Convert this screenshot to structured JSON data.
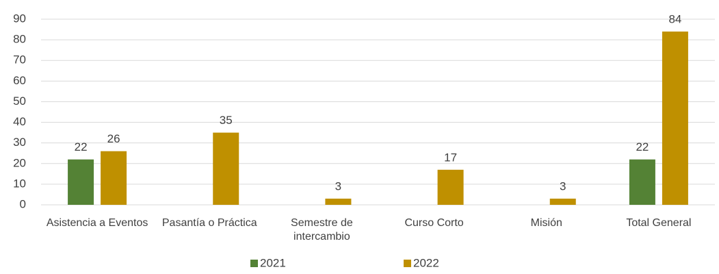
{
  "chart_data": {
    "type": "bar",
    "categories": [
      "Asistencia a Eventos",
      "Pasantía o Práctica",
      "Semestre de intercambio",
      "Curso Corto",
      "Misión",
      "Total General"
    ],
    "series": [
      {
        "name": "2021",
        "color": "#548235",
        "values": [
          22,
          null,
          null,
          null,
          null,
          22
        ]
      },
      {
        "name": "2022",
        "color": "#bf9000",
        "values": [
          26,
          35,
          3,
          17,
          3,
          84
        ]
      }
    ],
    "ylim": [
      0,
      90
    ],
    "yticks": [
      0,
      10,
      20,
      30,
      40,
      50,
      60,
      70,
      80,
      90
    ],
    "grid": true,
    "legend": "bottom"
  }
}
